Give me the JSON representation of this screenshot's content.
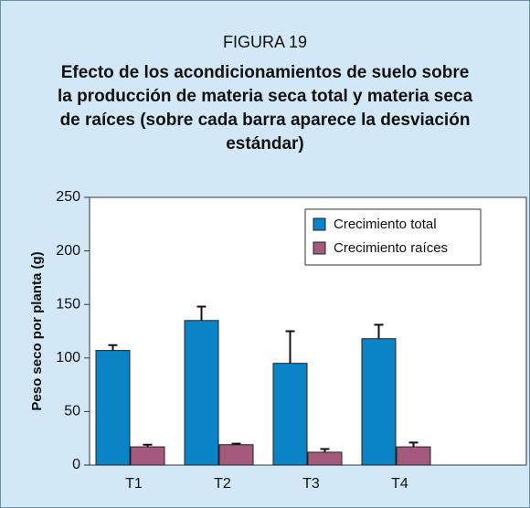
{
  "chart_data": {
    "type": "bar",
    "figure_label": "FIGURA 19",
    "title": [
      "Efecto de los acondicionamientos de suelo sobre",
      "la producción de materia seca total y materia seca",
      "de raíces (sobre cada barra aparece la desviación",
      "estándar)"
    ],
    "y_label": "Peso seco por planta (g)",
    "categories": [
      "T1",
      "T2",
      "T3",
      "T4"
    ],
    "series": [
      {
        "name": "Crecimiento total",
        "color": "#0a84c6",
        "values": [
          107,
          135,
          95,
          118
        ],
        "errors": [
          5,
          13,
          30,
          13
        ]
      },
      {
        "name": "Crecimiento raíces",
        "color": "#a35a7d",
        "values": [
          17,
          19,
          12,
          17
        ],
        "errors": [
          2,
          1,
          3,
          4
        ]
      }
    ],
    "ylim": [
      0,
      250
    ],
    "yticks": [
      0,
      50,
      100,
      150,
      200,
      250
    ],
    "legend": "upper right"
  }
}
